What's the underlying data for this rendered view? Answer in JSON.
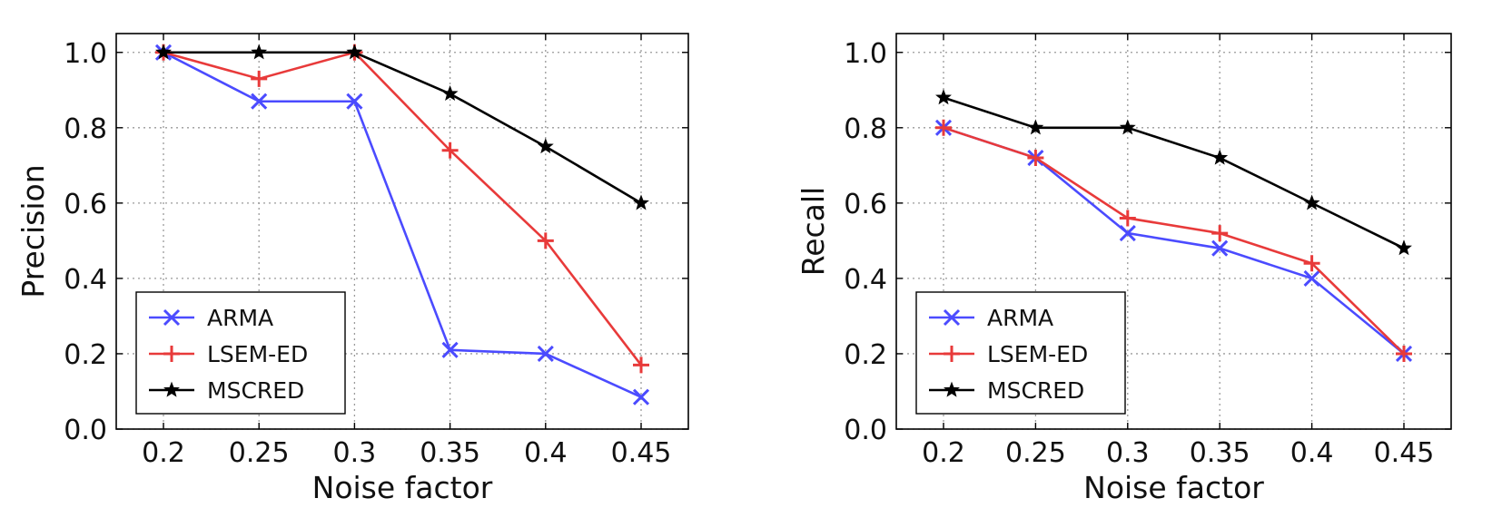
{
  "chart_data": [
    {
      "type": "line",
      "xlabel": "Noise factor",
      "ylabel": "Precision",
      "categories": [
        "0.2",
        "0.25",
        "0.3",
        "0.35",
        "0.4",
        "0.45"
      ],
      "ylim": [
        0.0,
        1.05
      ],
      "yticks": [
        "0.0",
        "0.2",
        "0.4",
        "0.6",
        "0.8",
        "1.0"
      ],
      "grid": true,
      "legend_position": "lower-left",
      "series": [
        {
          "name": "ARMA",
          "marker": "x",
          "color": "#4b4bff",
          "values": [
            1.0,
            0.87,
            0.87,
            0.21,
            0.2,
            0.085
          ]
        },
        {
          "name": "LSEM-ED",
          "marker": "plus",
          "color": "#e83a3a",
          "values": [
            1.0,
            0.93,
            1.0,
            0.74,
            0.5,
            0.17
          ]
        },
        {
          "name": "MSCRED",
          "marker": "star",
          "color": "#000000",
          "values": [
            1.0,
            1.0,
            1.0,
            0.89,
            0.75,
            0.6
          ]
        }
      ]
    },
    {
      "type": "line",
      "xlabel": "Noise factor",
      "ylabel": "Recall",
      "categories": [
        "0.2",
        "0.25",
        "0.3",
        "0.35",
        "0.4",
        "0.45"
      ],
      "ylim": [
        0.0,
        1.05
      ],
      "yticks": [
        "0.0",
        "0.2",
        "0.4",
        "0.6",
        "0.8",
        "1.0"
      ],
      "grid": true,
      "legend_position": "lower-left",
      "series": [
        {
          "name": "ARMA",
          "marker": "x",
          "color": "#4b4bff",
          "values": [
            0.8,
            0.72,
            0.52,
            0.48,
            0.4,
            0.2
          ]
        },
        {
          "name": "LSEM-ED",
          "marker": "plus",
          "color": "#e83a3a",
          "values": [
            0.8,
            0.72,
            0.56,
            0.52,
            0.44,
            0.2
          ]
        },
        {
          "name": "MSCRED",
          "marker": "star",
          "color": "#000000",
          "values": [
            0.88,
            0.8,
            0.8,
            0.72,
            0.6,
            0.48
          ]
        }
      ]
    }
  ]
}
